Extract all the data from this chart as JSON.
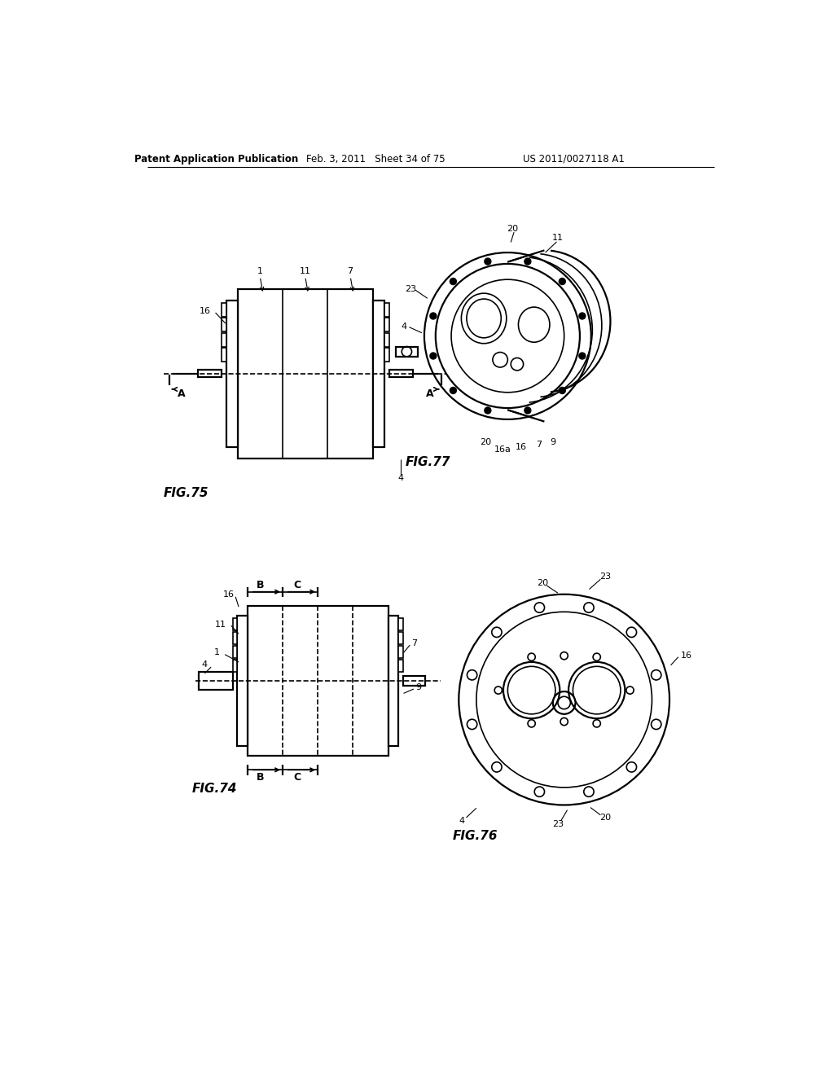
{
  "header_left": "Patent Application Publication",
  "header_mid": "Feb. 3, 2011   Sheet 34 of 75",
  "header_right": "US 2011/0027118 A1",
  "background": "#ffffff"
}
